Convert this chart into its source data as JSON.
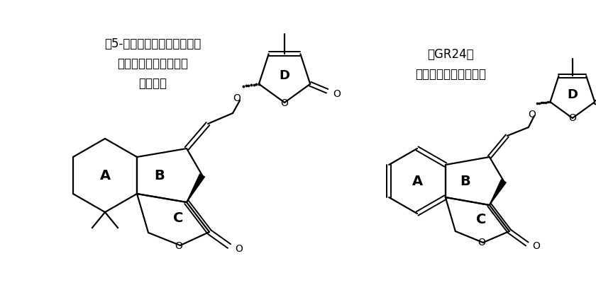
{
  "bg_color": "#ffffff",
  "label1_lines": [
    "代表的な",
    "天然ストリゴラクトン",
    "（5-デオキシストリゴール）"
  ],
  "label2_lines": [
    "人工ストリゴラクトン",
    "（GR24）"
  ],
  "fig_width": 8.4,
  "fig_height": 4.03,
  "dpi": 100,
  "font_size_labels": 12
}
